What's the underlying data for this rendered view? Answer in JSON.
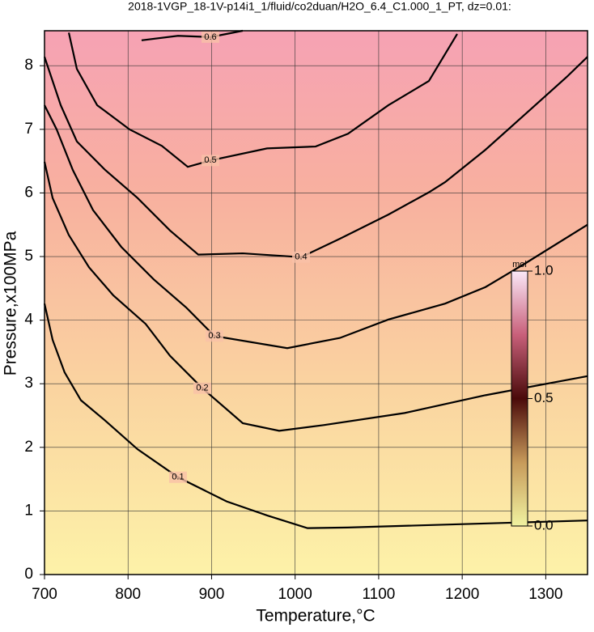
{
  "chart_data": {
    "type": "contour",
    "title": "2018-1VGP_18-1V-p14i1_1/fluid/co2duan/H2O_6.4_C1.000_1_PT, dz=0.01:",
    "x_label": "Temperature,°C",
    "y_label": "Pressure,x100MPa",
    "xlim": [
      700,
      1350
    ],
    "ylim": [
      0,
      8.55
    ],
    "xticks": [
      700,
      800,
      900,
      1000,
      1100,
      1200,
      1300
    ],
    "yticks": [
      0,
      1,
      2,
      3,
      4,
      5,
      6,
      7,
      8
    ],
    "grid": true,
    "contours": [
      {
        "level": 0.1,
        "x": [
          700,
          709.7,
          724,
          743.6,
          772.7,
          811.4,
          859.8,
          918,
          966.4,
          1014.8,
          1063,
          1350
        ],
        "y": [
          4.26,
          3.69,
          3.18,
          2.74,
          2.42,
          1.97,
          1.53,
          1.15,
          0.93,
          0.73,
          0.74,
          0.85
        ]
      },
      {
        "level": 0.2,
        "x": [
          700,
          709.7,
          729,
          753.3,
          782.3,
          821.1,
          850.2,
          888.9,
          937.3,
          980.9,
          1034.2,
          1131.1,
          1227.9,
          1350
        ],
        "y": [
          6.49,
          5.92,
          5.34,
          4.83,
          4.39,
          3.94,
          3.44,
          2.93,
          2.38,
          2.26,
          2.35,
          2.54,
          2.82,
          3.12
        ]
      },
      {
        "level": 0.3,
        "x": [
          700,
          714.5,
          733.9,
          758.1,
          792,
          830.8,
          869.5,
          903.4,
          990.6,
          1053.6,
          1111.7,
          1179.5,
          1227.9,
          1276.4,
          1350
        ],
        "y": [
          7.38,
          7.0,
          6.36,
          5.73,
          5.15,
          4.64,
          4.2,
          3.75,
          3.56,
          3.72,
          4.01,
          4.26,
          4.52,
          4.9,
          5.5
        ]
      },
      {
        "level": 0.4,
        "x": [
          700,
          719.4,
          738.7,
          772.7,
          811.4,
          850.2,
          884.1,
          937.3,
          1007.1,
          1053.6,
          1111.7,
          1160.1,
          1179.5,
          1227.9,
          1276.4,
          1324.8,
          1350
        ],
        "y": [
          8.14,
          7.38,
          6.81,
          6.36,
          5.92,
          5.41,
          5.03,
          5.05,
          4.99,
          5.28,
          5.66,
          6.01,
          6.17,
          6.68,
          7.25,
          7.82,
          8.14
        ]
      },
      {
        "level": 0.5,
        "x": [
          729.1,
          738.7,
          763,
          801.7,
          840.5,
          871.5,
          898.6,
          966.4,
          1024.5,
          1063.3,
          1111.7,
          1160.1,
          1194
        ],
        "y": [
          8.52,
          7.95,
          7.38,
          7.0,
          6.74,
          6.41,
          6.51,
          6.7,
          6.73,
          6.93,
          7.38,
          7.76,
          8.5
        ]
      },
      {
        "level": 0.6,
        "x": [
          816.2,
          859.8,
          898.6,
          937.3
        ],
        "y": [
          8.4,
          8.47,
          8.45,
          8.55
        ]
      }
    ],
    "colorbar": {
      "label": "mol",
      "lim": [
        0,
        1
      ],
      "ticks": [
        {
          "value": 0,
          "label": "0.0"
        },
        0.5,
        {
          "value": 1,
          "label": "1.0"
        }
      ]
    }
  }
}
